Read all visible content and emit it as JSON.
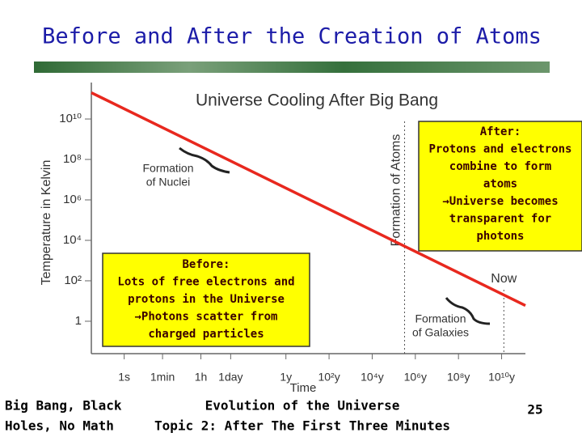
{
  "slide": {
    "title": "Before and After the Creation of Atoms",
    "callout_after": [
      "After:",
      "Protons and electrons",
      "combine to form",
      "atoms",
      "→Universe becomes",
      "transparent for",
      "photons"
    ],
    "callout_before": [
      "Before:",
      "Lots of free electrons and",
      "protons in the Universe",
      "→Photons scatter from",
      "charged particles"
    ],
    "footer_left": [
      "Big Bang, Black",
      "Holes, No Math"
    ],
    "footer_center": [
      "Evolution of the Universe",
      "Topic 2: After The First Three Minutes"
    ],
    "page_number": "25"
  },
  "chart_data": {
    "type": "line",
    "title": "Universe Cooling After Big Bang",
    "x_label": "Time",
    "y_label": "Temperature in Kelvin",
    "log_x": true,
    "log_y": true,
    "xlim": [
      0.03,
      4e+18
    ],
    "ylim": [
      0.025,
      400000000000.0
    ],
    "xticks": [
      {
        "value": 1,
        "label": "1s"
      },
      {
        "value": 60,
        "label": "1min"
      },
      {
        "value": 3600,
        "label": "1h"
      },
      {
        "value": 86400,
        "label": "1day"
      },
      {
        "value": 31500000,
        "label": "1y"
      },
      {
        "value": 3150000000,
        "label": "10²y"
      },
      {
        "value": 315000000000,
        "label": "10⁴y"
      },
      {
        "value": 31500000000000,
        "label": "10⁶y"
      },
      {
        "value": 3150000000000000,
        "label": "10⁸y"
      },
      {
        "value": 315000000000000000,
        "label": "10¹⁰y"
      }
    ],
    "yticks": [
      1,
      {
        "value": 100,
        "label": "10²"
      },
      {
        "value": 10000,
        "label": "10⁴"
      },
      {
        "value": 1000000,
        "label": "10⁶"
      },
      {
        "value": 100000000,
        "label": "10⁸"
      },
      {
        "value": 10000000000,
        "label": "10¹⁰"
      }
    ],
    "color": "#e8281e",
    "x": [
      0.03,
      4e+18
    ],
    "values": [
      200000000000,
      6
    ],
    "markers": [
      {
        "text": "Formation of Atoms",
        "x": 10000000000000
      },
      {
        "text": "Now",
        "x": 400000000000000000
      }
    ],
    "annotations": [
      {
        "lines": [
          "Formation",
          "of Nuclei"
        ]
      },
      {
        "lines": [
          "Formation",
          "of Galaxies"
        ]
      }
    ]
  }
}
